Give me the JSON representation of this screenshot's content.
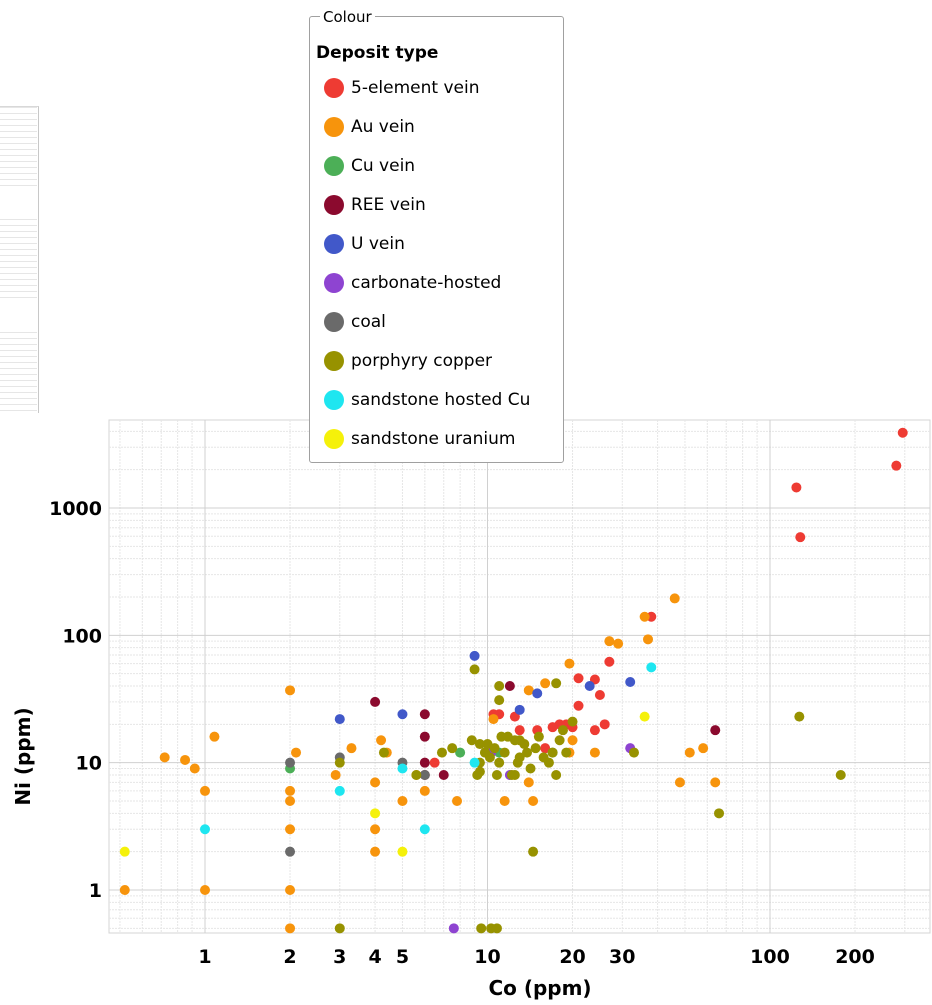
{
  "legend": {
    "title": "Colour",
    "heading": "Deposit type",
    "items": [
      {
        "label": "5-element vein",
        "color": "#ee3b33"
      },
      {
        "label": "Au vein",
        "color": "#f7940c"
      },
      {
        "label": "Cu vein",
        "color": "#4caf57"
      },
      {
        "label": "REE vein",
        "color": "#8b0a2e"
      },
      {
        "label": "U vein",
        "color": "#4158c9"
      },
      {
        "label": "carbonate-hosted",
        "color": "#8e44d1"
      },
      {
        "label": "coal",
        "color": "#6a6a6a"
      },
      {
        "label": "porphyry copper",
        "color": "#979200"
      },
      {
        "label": "sandstone hosted Cu",
        "color": "#1ee6f0"
      },
      {
        "label": "sandstone uranium",
        "color": "#f5f10a"
      }
    ]
  },
  "chart_data": {
    "type": "scatter",
    "xlabel": "Co (ppm)",
    "ylabel": "Ni (ppm)",
    "xscale": "log",
    "yscale": "log",
    "xlim": [
      0.5,
      330
    ],
    "ylim": [
      0.45,
      4800
    ],
    "xticks": [
      1,
      2,
      3,
      4,
      5,
      10,
      20,
      30,
      100,
      200
    ],
    "yticks": [
      1,
      10,
      100,
      1000
    ],
    "grid": true,
    "series": [
      {
        "name": "5-element vein",
        "color": "#ee3b33",
        "points": [
          [
            295,
            3900
          ],
          [
            280,
            2150
          ],
          [
            124,
            1450
          ],
          [
            128,
            590
          ],
          [
            38,
            140
          ],
          [
            27,
            62
          ],
          [
            24,
            45
          ],
          [
            25,
            34
          ],
          [
            26,
            20
          ],
          [
            24,
            18
          ],
          [
            21,
            46
          ],
          [
            21,
            28
          ],
          [
            18,
            20
          ],
          [
            17,
            19
          ],
          [
            19,
            20
          ],
          [
            15,
            18
          ],
          [
            13,
            18
          ],
          [
            11,
            24
          ],
          [
            10.5,
            24
          ],
          [
            12.5,
            23
          ],
          [
            6.5,
            10
          ],
          [
            20,
            19
          ],
          [
            16,
            13
          ]
        ]
      },
      {
        "name": "Au vein",
        "color": "#f7940c",
        "points": [
          [
            0.52,
            1
          ],
          [
            0.72,
            11
          ],
          [
            0.85,
            10.5
          ],
          [
            0.92,
            9
          ],
          [
            1.08,
            16
          ],
          [
            1,
            6
          ],
          [
            1,
            1
          ],
          [
            2,
            37
          ],
          [
            2.1,
            12
          ],
          [
            2,
            6
          ],
          [
            2,
            5
          ],
          [
            2,
            3
          ],
          [
            2,
            1
          ],
          [
            2,
            0.5
          ],
          [
            2.9,
            8
          ],
          [
            3.3,
            13
          ],
          [
            4.2,
            15
          ],
          [
            4.4,
            12
          ],
          [
            4,
            7
          ],
          [
            4,
            3
          ],
          [
            4,
            2
          ],
          [
            5,
            5
          ],
          [
            5.6,
            8
          ],
          [
            6,
            6
          ],
          [
            7.8,
            5
          ],
          [
            10.5,
            22
          ],
          [
            11.5,
            5
          ],
          [
            14,
            7
          ],
          [
            14.5,
            5
          ],
          [
            14,
            37
          ],
          [
            16,
            42
          ],
          [
            19.5,
            60
          ],
          [
            20,
            15
          ],
          [
            19.5,
            12
          ],
          [
            27,
            90
          ],
          [
            29,
            86
          ],
          [
            24,
            12
          ],
          [
            36,
            140
          ],
          [
            37,
            93
          ],
          [
            46,
            195
          ],
          [
            48,
            7
          ],
          [
            52,
            12
          ],
          [
            58,
            13
          ],
          [
            64,
            7
          ]
        ]
      },
      {
        "name": "Cu vein",
        "color": "#4caf57",
        "points": [
          [
            2,
            9
          ],
          [
            8,
            12
          ],
          [
            11,
            12
          ],
          [
            17,
            12
          ]
        ]
      },
      {
        "name": "REE vein",
        "color": "#8b0a2e",
        "points": [
          [
            4,
            30
          ],
          [
            6,
            24
          ],
          [
            6,
            16
          ],
          [
            6,
            10
          ],
          [
            6,
            8
          ],
          [
            7,
            8
          ],
          [
            12,
            40
          ],
          [
            64,
            18
          ]
        ]
      },
      {
        "name": "U vein",
        "color": "#4158c9",
        "points": [
          [
            3,
            22
          ],
          [
            5,
            24
          ],
          [
            9,
            69
          ],
          [
            13,
            26
          ],
          [
            15,
            35
          ],
          [
            23,
            40
          ],
          [
            32,
            43
          ]
        ]
      },
      {
        "name": "carbonate-hosted",
        "color": "#8e44d1",
        "points": [
          [
            7.6,
            0.5
          ],
          [
            12,
            8
          ],
          [
            32,
            13
          ],
          [
            10.3,
            12
          ]
        ]
      },
      {
        "name": "coal",
        "color": "#6a6a6a",
        "points": [
          [
            2,
            10
          ],
          [
            2,
            2
          ],
          [
            3,
            11
          ],
          [
            5,
            10
          ],
          [
            6,
            8
          ]
        ]
      },
      {
        "name": "porphyry copper",
        "color": "#979200",
        "points": [
          [
            3,
            0.5
          ],
          [
            3,
            10
          ],
          [
            4.3,
            12
          ],
          [
            5.6,
            8
          ],
          [
            6.9,
            12
          ],
          [
            7.5,
            13
          ],
          [
            8.8,
            15
          ],
          [
            9.4,
            14
          ],
          [
            9.4,
            10
          ],
          [
            9.8,
            12
          ],
          [
            10,
            14
          ],
          [
            10.2,
            11
          ],
          [
            10.6,
            13
          ],
          [
            10.8,
            8
          ],
          [
            11.2,
            16
          ],
          [
            11.5,
            12
          ],
          [
            11.8,
            16
          ],
          [
            12.2,
            8
          ],
          [
            12.5,
            15
          ],
          [
            12.8,
            10
          ],
          [
            13,
            11
          ],
          [
            13.5,
            14
          ],
          [
            13.8,
            12
          ],
          [
            14.2,
            9
          ],
          [
            14.8,
            13
          ],
          [
            15.2,
            16
          ],
          [
            15.8,
            11
          ],
          [
            16.5,
            10
          ],
          [
            17,
            12
          ],
          [
            17.5,
            8
          ],
          [
            18,
            15
          ],
          [
            18.5,
            18
          ],
          [
            19,
            12
          ],
          [
            20,
            21
          ],
          [
            12.5,
            8
          ],
          [
            9.2,
            8
          ],
          [
            9.4,
            8.5
          ],
          [
            9,
            54
          ],
          [
            11,
            40
          ],
          [
            11,
            31
          ],
          [
            17.5,
            42
          ],
          [
            13,
            15
          ],
          [
            9.5,
            0.5
          ],
          [
            10.3,
            0.5
          ],
          [
            10.8,
            0.5
          ],
          [
            14.5,
            2
          ],
          [
            33,
            12
          ],
          [
            66,
            4
          ],
          [
            127,
            23
          ],
          [
            178,
            8
          ],
          [
            9.8,
            12
          ],
          [
            11,
            10
          ]
        ]
      },
      {
        "name": "sandstone hosted Cu",
        "color": "#1ee6f0",
        "points": [
          [
            1,
            3
          ],
          [
            3,
            6
          ],
          [
            5,
            9
          ],
          [
            6,
            3
          ],
          [
            9,
            10
          ],
          [
            38,
            56
          ]
        ]
      },
      {
        "name": "sandstone uranium",
        "color": "#f5f10a",
        "points": [
          [
            0.52,
            2
          ],
          [
            4,
            4
          ],
          [
            5,
            2
          ],
          [
            36,
            23
          ]
        ]
      }
    ]
  }
}
